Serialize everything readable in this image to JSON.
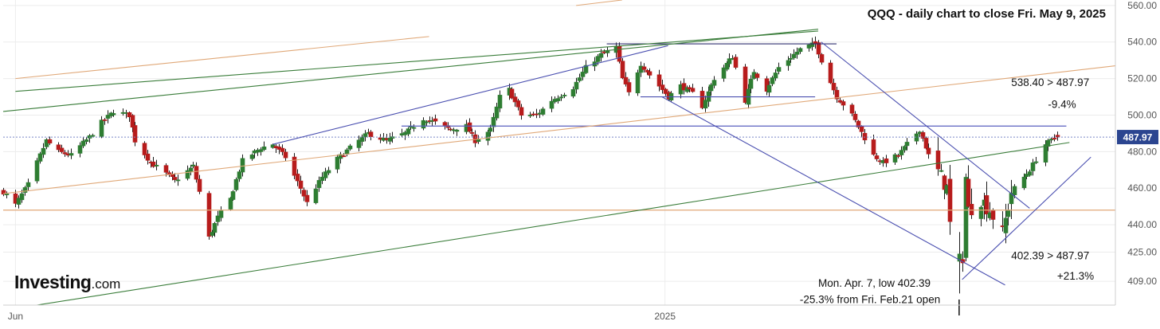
{
  "chart_data": {
    "type": "candlestick",
    "title": "QQQ - daily chart to close Fri. May 9, 2025",
    "y_axis": {
      "ticks": [
        409.0,
        425.0,
        440.0,
        460.0,
        480.0,
        500.0,
        520.0,
        540.0,
        560.0
      ],
      "tick_labels": [
        "409.00",
        "425.00",
        "440.00",
        "460.00",
        "480.00",
        "500.00",
        "520.00",
        "540.00",
        "560.00"
      ],
      "range": [
        396,
        563
      ],
      "position": "right"
    },
    "x_axis": {
      "tick_labels": [
        "Jun",
        "2025"
      ],
      "range": [
        "2024-05-30",
        "2025-05-28"
      ]
    },
    "last_price": {
      "value": 487.97,
      "label": "487.97",
      "color": "#2b4590"
    },
    "candle_colors": {
      "up": "#2e7d32",
      "down": "#b71c1c"
    },
    "pivots": [
      [
        "2024-05-30",
        458
      ],
      [
        "2024-06-03",
        451
      ],
      [
        "2024-06-07",
        462
      ],
      [
        "2024-06-11",
        478
      ],
      [
        "2024-06-13",
        486
      ],
      [
        "2024-06-17",
        480
      ],
      [
        "2024-06-21",
        478
      ],
      [
        "2024-06-27",
        488
      ],
      [
        "2024-07-01",
        496
      ],
      [
        "2024-07-05",
        502
      ],
      [
        "2024-07-10",
        500
      ],
      [
        "2024-07-12",
        486
      ],
      [
        "2024-07-17",
        474
      ],
      [
        "2024-07-22",
        468
      ],
      [
        "2024-07-25",
        464
      ],
      [
        "2024-07-31",
        472
      ],
      [
        "2024-08-02",
        458
      ],
      [
        "2024-08-05",
        433
      ],
      [
        "2024-08-08",
        444
      ],
      [
        "2024-08-12",
        454
      ],
      [
        "2024-08-16",
        475
      ],
      [
        "2024-08-22",
        482
      ],
      [
        "2024-08-26",
        484
      ],
      [
        "2024-08-30",
        477
      ],
      [
        "2024-09-04",
        460
      ],
      [
        "2024-09-06",
        452
      ],
      [
        "2024-09-11",
        466
      ],
      [
        "2024-09-16",
        476
      ],
      [
        "2024-09-20",
        482
      ],
      [
        "2024-09-26",
        490
      ],
      [
        "2024-10-02",
        486
      ],
      [
        "2024-10-08",
        490
      ],
      [
        "2024-10-14",
        498
      ],
      [
        "2024-10-18",
        496
      ],
      [
        "2024-10-23",
        492
      ],
      [
        "2024-10-28",
        494
      ],
      [
        "2024-10-31",
        486
      ],
      [
        "2024-11-05",
        492
      ],
      [
        "2024-11-08",
        510
      ],
      [
        "2024-11-11",
        514
      ],
      [
        "2024-11-15",
        500
      ],
      [
        "2024-11-20",
        500
      ],
      [
        "2024-11-25",
        508
      ],
      [
        "2024-12-02",
        515
      ],
      [
        "2024-12-06",
        526
      ],
      [
        "2024-12-11",
        533
      ],
      [
        "2024-12-16",
        537
      ],
      [
        "2024-12-18",
        520
      ],
      [
        "2024-12-20",
        512
      ],
      [
        "2024-12-24",
        528
      ],
      [
        "2024-12-27",
        522
      ],
      [
        "2025-01-02",
        510
      ],
      [
        "2025-01-06",
        516
      ],
      [
        "2025-01-10",
        512
      ],
      [
        "2025-01-13",
        505
      ],
      [
        "2025-01-17",
        520
      ],
      [
        "2025-01-23",
        532
      ],
      [
        "2025-01-27",
        508
      ],
      [
        "2025-01-30",
        524
      ],
      [
        "2025-02-03",
        514
      ],
      [
        "2025-02-07",
        526
      ],
      [
        "2025-02-14",
        536
      ],
      [
        "2025-02-19",
        539
      ],
      [
        "2025-02-21",
        530
      ],
      [
        "2025-02-26",
        510
      ],
      [
        "2025-03-03",
        500
      ],
      [
        "2025-03-10",
        478
      ],
      [
        "2025-03-13",
        474
      ],
      [
        "2025-03-18",
        478
      ],
      [
        "2025-03-25",
        492
      ],
      [
        "2025-03-28",
        478
      ],
      [
        "2025-04-03",
        460
      ],
      [
        "2025-04-04",
        440
      ],
      [
        "2025-04-07",
        418
      ],
      [
        "2025-04-08",
        423
      ],
      [
        "2025-04-09",
        466
      ],
      [
        "2025-04-10",
        448
      ],
      [
        "2025-04-14",
        454
      ],
      [
        "2025-04-17",
        448
      ],
      [
        "2025-04-21",
        435
      ],
      [
        "2025-04-24",
        458
      ],
      [
        "2025-04-30",
        470
      ],
      [
        "2025-05-05",
        484
      ],
      [
        "2025-05-09",
        487.97
      ]
    ],
    "overlays": {
      "horizontal": [
        {
          "name": "support-line",
          "y": 448.0,
          "from": "2024-05-30",
          "to": "2025-05-28",
          "color": "#e0a878"
        },
        {
          "name": "resistance-line",
          "y": 494.0,
          "from": "2024-10-07",
          "to": "2025-05-12",
          "color": "#5a5fbf"
        },
        {
          "name": "last-price-line",
          "y": 487.97,
          "from": "2024-05-30",
          "to": "2025-05-28",
          "color": "#7b88c8",
          "dashed": true
        },
        {
          "name": "top-range-line",
          "y": 539.0,
          "from": "2024-12-13",
          "to": "2025-02-26",
          "color": "#303070"
        },
        {
          "name": "range-floor-line",
          "y": 510.0,
          "from": "2024-12-24",
          "to": "2025-02-19",
          "color": "#4a4fb0"
        }
      ],
      "trendlines": [
        {
          "name": "orange-trend-line-1",
          "p1": [
            "2024-05-30",
            457
          ],
          "p2": [
            "2025-05-28",
            527
          ],
          "color": "#e0a878"
        },
        {
          "name": "orange-trend-line-2",
          "p1": [
            "2024-06-03",
            520
          ],
          "p2": [
            "2024-10-16",
            543
          ],
          "color": "#e0a878"
        },
        {
          "name": "orange-trend-line-3",
          "p1": [
            "2024-12-03",
            560
          ],
          "p2": [
            "2024-12-18",
            563
          ],
          "color": "#e0a878"
        },
        {
          "name": "green-trend-line-1",
          "p1": [
            "2024-05-30",
            502
          ],
          "p2": [
            "2025-02-20",
            547
          ],
          "color": "#3a7d3a"
        },
        {
          "name": "green-trend-line-2",
          "p1": [
            "2024-06-03",
            513
          ],
          "p2": [
            "2025-02-20",
            546
          ],
          "color": "#3a7d3a"
        },
        {
          "name": "green-trend-line-3",
          "p1": [
            "2024-06-10",
            396
          ],
          "p2": [
            "2025-05-13",
            485
          ],
          "color": "#3a7d3a"
        },
        {
          "name": "blue-trend-line-1",
          "p1": [
            "2024-08-26",
            484
          ],
          "p2": [
            "2025-01-02",
            538
          ],
          "color": "#4a4fb0"
        },
        {
          "name": "blue-trend-line-2",
          "p1": [
            "2024-12-31",
            510
          ],
          "p2": [
            "2025-04-22",
            407
          ],
          "color": "#4a4fb0"
        },
        {
          "name": "blue-trend-line-3",
          "p1": [
            "2025-02-21",
            540
          ],
          "p2": [
            "2025-04-30",
            449
          ],
          "color": "#4a4fb0"
        },
        {
          "name": "blue-trend-line-4",
          "p1": [
            "2025-04-08",
            410
          ],
          "p2": [
            "2025-05-20",
            477
          ],
          "color": "#4a4fb0"
        }
      ]
    },
    "annotations": [
      {
        "name": "decline-annotation-1",
        "text": "538.40 > 487.97",
        "at": [
          "2025-04-24",
          516
        ],
        "anchor": "start"
      },
      {
        "name": "decline-annotation-2",
        "text": "-9.4%",
        "at": [
          "2025-05-06",
          504
        ],
        "anchor": "start"
      },
      {
        "name": "rally-annotation-1",
        "text": "402.39 > 487.97",
        "at": [
          "2025-04-24",
          421
        ],
        "anchor": "start"
      },
      {
        "name": "rally-annotation-2",
        "text": "+21.3%",
        "at": [
          "2025-05-09",
          410
        ],
        "anchor": "start"
      },
      {
        "name": "low-annotation-1",
        "text": "Mon. Apr. 7, low 402.39",
        "at": [
          "2025-02-20",
          406
        ],
        "anchor": "start"
      },
      {
        "name": "low-annotation-2",
        "text": "-25.3% from Fri. Feb.21 open",
        "at": [
          "2025-02-14",
          397
        ],
        "anchor": "start"
      }
    ],
    "logo": {
      "main": "Investing",
      "suffix": ".com"
    }
  }
}
